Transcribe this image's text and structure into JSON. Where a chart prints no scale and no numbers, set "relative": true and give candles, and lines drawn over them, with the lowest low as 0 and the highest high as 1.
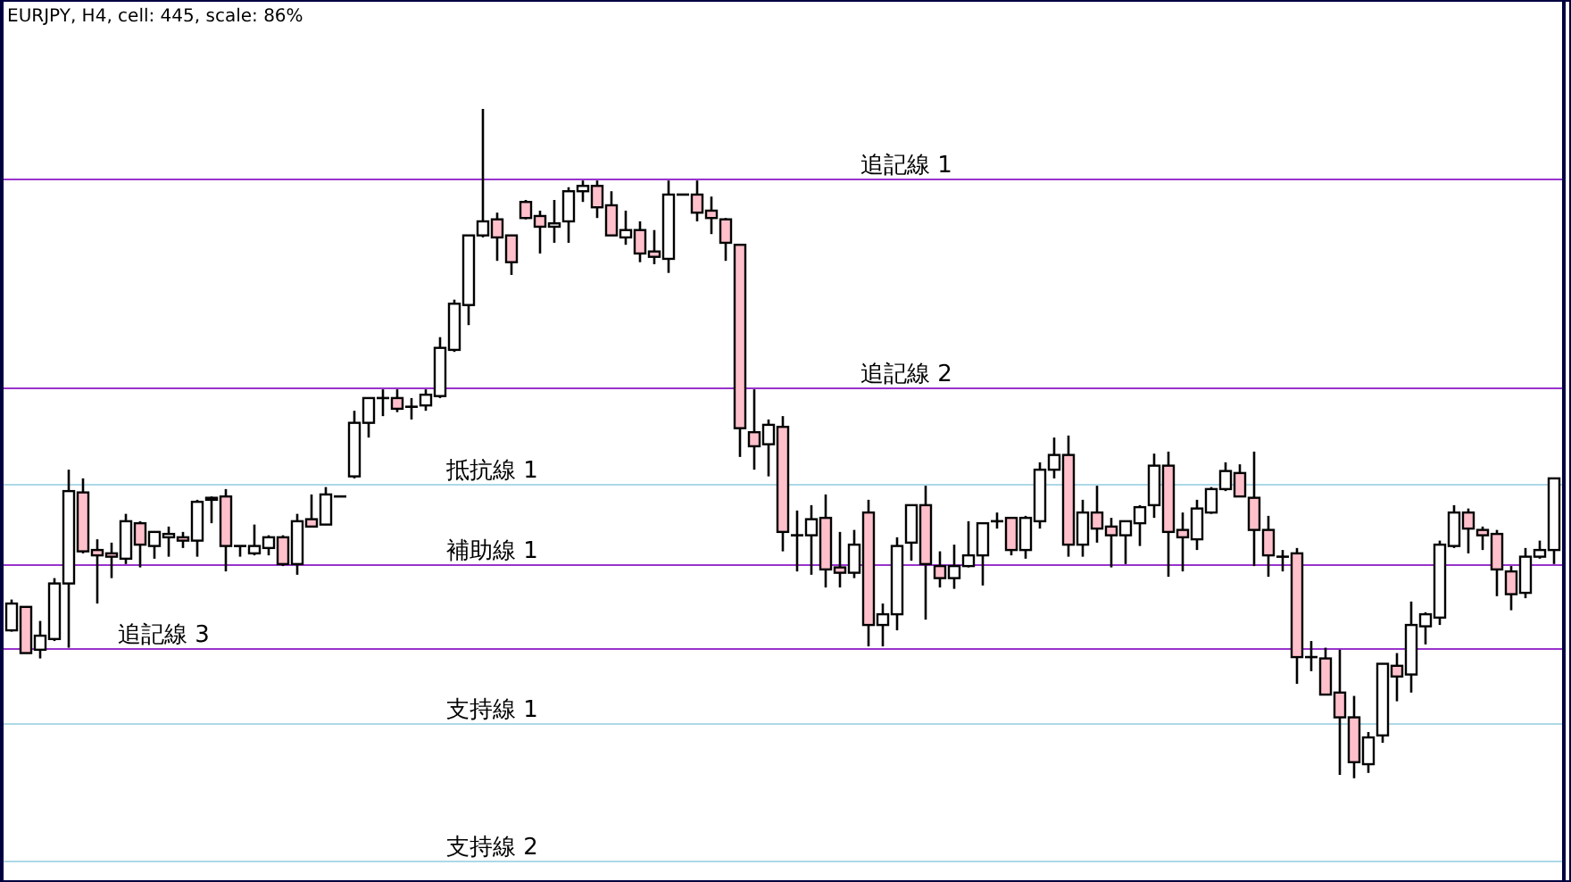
{
  "chart_data": {
    "type": "candlestick",
    "title": "EURJPY, H4, cell: 445, scale: 86%",
    "relative": true,
    "categories": [
      null,
      null,
      null,
      null,
      null,
      null,
      null,
      null,
      null,
      null,
      null,
      null,
      null,
      null,
      null,
      null,
      null,
      null,
      null,
      null,
      null,
      null,
      null,
      null,
      null,
      null,
      null,
      null,
      null,
      null,
      null,
      null,
      null,
      null,
      null,
      null,
      null,
      null,
      null,
      null,
      null,
      null,
      null,
      null,
      null,
      null,
      null,
      null,
      null,
      null,
      null,
      null,
      null,
      null,
      null,
      null,
      null,
      null,
      null,
      null,
      null,
      null,
      null,
      null,
      null,
      null,
      null,
      null,
      null,
      null,
      null,
      null,
      null,
      null,
      null,
      null,
      null,
      null,
      null,
      null,
      null,
      null,
      null,
      null,
      null,
      null,
      null,
      null,
      null,
      null,
      null,
      null,
      null,
      null,
      null,
      null,
      null,
      null,
      null,
      null,
      null,
      null,
      null,
      null,
      null,
      null,
      null,
      null,
      null
    ],
    "ohlc": [
      [
        0.221,
        0.267,
        0.219,
        0.261
      ],
      [
        0.256,
        0.256,
        0.187,
        0.187
      ],
      [
        0.192,
        0.235,
        0.179,
        0.213
      ],
      [
        0.208,
        0.299,
        0.205,
        0.291
      ],
      [
        0.291,
        0.461,
        0.195,
        0.429
      ],
      [
        0.427,
        0.448,
        0.336,
        0.339
      ],
      [
        0.341,
        0.357,
        0.261,
        0.333
      ],
      [
        0.336,
        0.352,
        0.299,
        0.331
      ],
      [
        0.328,
        0.395,
        0.32,
        0.384
      ],
      [
        0.381,
        0.384,
        0.315,
        0.349
      ],
      [
        0.347,
        0.368,
        0.328,
        0.368
      ],
      [
        0.36,
        0.376,
        0.331,
        0.365
      ],
      [
        0.36,
        0.368,
        0.344,
        0.355
      ],
      [
        0.355,
        0.416,
        0.331,
        0.413
      ],
      [
        0.416,
        0.421,
        0.381,
        0.419
      ],
      [
        0.421,
        0.432,
        0.309,
        0.347
      ],
      [
        0.347,
        0.347,
        0.331,
        0.347
      ],
      [
        0.336,
        0.379,
        0.333,
        0.347
      ],
      [
        0.344,
        0.363,
        0.333,
        0.36
      ],
      [
        0.36,
        0.363,
        0.317,
        0.32
      ],
      [
        0.32,
        0.395,
        0.304,
        0.384
      ],
      [
        0.387,
        0.424,
        0.376,
        0.376
      ],
      [
        0.379,
        0.435,
        0.379,
        0.424
      ],
      [
        0.421,
        0.421,
        0.421,
        0.421
      ],
      [
        0.451,
        0.549,
        0.448,
        0.531
      ],
      [
        0.531,
        0.568,
        0.509,
        0.568
      ],
      [
        0.568,
        0.581,
        0.541,
        0.568
      ],
      [
        0.568,
        0.581,
        0.547,
        0.552
      ],
      [
        0.555,
        0.568,
        0.536,
        0.557
      ],
      [
        0.557,
        0.581,
        0.549,
        0.573
      ],
      [
        0.571,
        0.659,
        0.568,
        0.643
      ],
      [
        0.64,
        0.715,
        0.637,
        0.709
      ],
      [
        0.707,
        0.811,
        0.677,
        0.811
      ],
      [
        0.811,
        1,
        0.808,
        0.832
      ],
      [
        0.835,
        0.845,
        0.773,
        0.808
      ],
      [
        0.811,
        0.811,
        0.752,
        0.771
      ],
      [
        0.861,
        0.864,
        0.835,
        0.837
      ],
      [
        0.84,
        0.848,
        0.784,
        0.824
      ],
      [
        0.824,
        0.864,
        0.8,
        0.829
      ],
      [
        0.832,
        0.883,
        0.8,
        0.877
      ],
      [
        0.877,
        0.893,
        0.861,
        0.885
      ],
      [
        0.885,
        0.893,
        0.837,
        0.853
      ],
      [
        0.856,
        0.877,
        0.811,
        0.811
      ],
      [
        0.808,
        0.848,
        0.797,
        0.819
      ],
      [
        0.819,
        0.832,
        0.771,
        0.784
      ],
      [
        0.787,
        0.819,
        0.768,
        0.779
      ],
      [
        0.776,
        0.893,
        0.755,
        0.872
      ],
      [
        0.872,
        0.872,
        0.872,
        0.872
      ],
      [
        0.872,
        0.893,
        0.832,
        0.845
      ],
      [
        0.848,
        0.869,
        0.813,
        0.837
      ],
      [
        0.835,
        0.837,
        0.773,
        0.8
      ],
      [
        0.797,
        0.797,
        0.48,
        0.523
      ],
      [
        0.517,
        0.581,
        0.461,
        0.496
      ],
      [
        0.499,
        0.536,
        0.451,
        0.528
      ],
      [
        0.525,
        0.541,
        0.339,
        0.368
      ],
      [
        0.363,
        0.4,
        0.309,
        0.363
      ],
      [
        0.363,
        0.408,
        0.304,
        0.387
      ],
      [
        0.389,
        0.424,
        0.285,
        0.312
      ],
      [
        0.315,
        0.368,
        0.285,
        0.307
      ],
      [
        0.307,
        0.371,
        0.299,
        0.349
      ],
      [
        0.397,
        0.416,
        0.197,
        0.229
      ],
      [
        0.229,
        0.261,
        0.197,
        0.245
      ],
      [
        0.245,
        0.36,
        0.221,
        0.347
      ],
      [
        0.352,
        0.408,
        0.325,
        0.408
      ],
      [
        0.408,
        0.437,
        0.237,
        0.32
      ],
      [
        0.317,
        0.339,
        0.285,
        0.299
      ],
      [
        0.299,
        0.349,
        0.283,
        0.317
      ],
      [
        0.317,
        0.384,
        0.315,
        0.333
      ],
      [
        0.333,
        0.381,
        0.288,
        0.381
      ],
      [
        0.384,
        0.397,
        0.373,
        0.384
      ],
      [
        0.389,
        0.389,
        0.333,
        0.341
      ],
      [
        0.341,
        0.392,
        0.328,
        0.389
      ],
      [
        0.384,
        0.472,
        0.373,
        0.461
      ],
      [
        0.461,
        0.509,
        0.448,
        0.483
      ],
      [
        0.483,
        0.512,
        0.331,
        0.349
      ],
      [
        0.349,
        0.416,
        0.331,
        0.397
      ],
      [
        0.397,
        0.437,
        0.352,
        0.373
      ],
      [
        0.376,
        0.389,
        0.315,
        0.363
      ],
      [
        0.363,
        0.384,
        0.32,
        0.384
      ],
      [
        0.381,
        0.408,
        0.347,
        0.405
      ],
      [
        0.408,
        0.485,
        0.389,
        0.467
      ],
      [
        0.467,
        0.488,
        0.301,
        0.368
      ],
      [
        0.371,
        0.397,
        0.309,
        0.36
      ],
      [
        0.357,
        0.416,
        0.341,
        0.403
      ],
      [
        0.397,
        0.435,
        0.395,
        0.432
      ],
      [
        0.432,
        0.472,
        0.429,
        0.459
      ],
      [
        0.456,
        0.469,
        0.421,
        0.421
      ],
      [
        0.419,
        0.488,
        0.317,
        0.371
      ],
      [
        0.371,
        0.392,
        0.301,
        0.333
      ],
      [
        0.331,
        0.341,
        0.309,
        0.331
      ],
      [
        0.336,
        0.344,
        0.141,
        0.181
      ],
      [
        0.181,
        0.205,
        0.16,
        0.181
      ],
      [
        0.179,
        0.195,
        0.125,
        0.125
      ],
      [
        0.128,
        0.192,
        0.005,
        0.091
      ],
      [
        0.091,
        0.123,
        0,
        0.024
      ],
      [
        0.021,
        0.069,
        0.008,
        0.061
      ],
      [
        0.064,
        0.171,
        0.053,
        0.171
      ],
      [
        0.168,
        0.187,
        0.115,
        0.152
      ],
      [
        0.155,
        0.264,
        0.128,
        0.229
      ],
      [
        0.227,
        0.248,
        0.2,
        0.245
      ],
      [
        0.24,
        0.355,
        0.229,
        0.349
      ],
      [
        0.347,
        0.408,
        0.344,
        0.397
      ],
      [
        0.397,
        0.403,
        0.336,
        0.373
      ],
      [
        0.371,
        0.376,
        0.341,
        0.363
      ],
      [
        0.365,
        0.371,
        0.272,
        0.312
      ],
      [
        0.309,
        0.317,
        0.251,
        0.275
      ],
      [
        0.277,
        0.344,
        0.269,
        0.331
      ],
      [
        0.331,
        0.355,
        0.328,
        0.341
      ],
      [
        0.341,
        0.448,
        0.32,
        0.448
      ]
    ],
    "ref_lines": [
      {
        "axis": "y",
        "value": 0.896,
        "label": "追記線 1",
        "color": "#9933cc"
      },
      {
        "axis": "y",
        "value": 0.584,
        "label": "追記線 2",
        "color": "#9933cc"
      },
      {
        "axis": "y",
        "value": 0.44,
        "label": "抵抗線 1",
        "color": "#add8e6"
      },
      {
        "axis": "y",
        "value": 0.32,
        "label": "補助線 1",
        "color": "#9933cc"
      },
      {
        "axis": "y",
        "value": 0.195,
        "label": "追記線 3",
        "color": "#9933cc"
      },
      {
        "axis": "y",
        "value": 0.083,
        "label": "支持線 1",
        "color": "#add8e6"
      },
      {
        "axis": "y",
        "value": -0.123,
        "label": "支持線 2",
        "color": "#add8e6"
      }
    ]
  }
}
